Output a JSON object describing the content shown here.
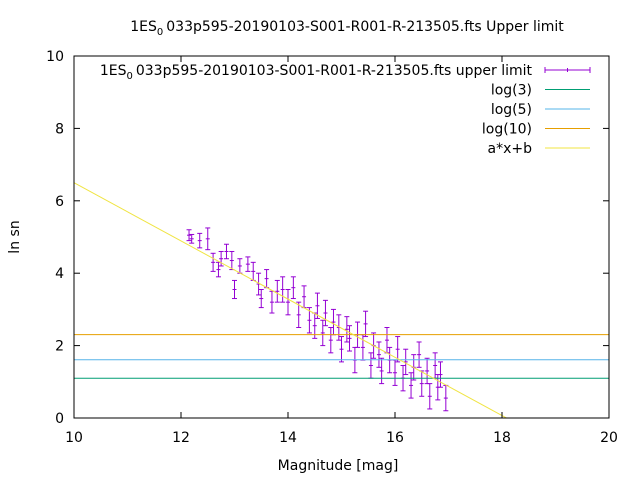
{
  "chart_data": {
    "type": "scatter",
    "title": {
      "prefix": "1ES",
      "subscript": "0",
      "suffix": "033p595-20190103-S001-R001-R-213505.fts Upper limit"
    },
    "xlabel": "Magnitude [mag]",
    "ylabel": "ln sn",
    "xlim": [
      10,
      20
    ],
    "ylim": [
      0,
      10
    ],
    "xticks": [
      {
        "value": 10,
        "label": "10"
      },
      {
        "value": 12,
        "label": "12"
      },
      {
        "value": 14,
        "label": "14"
      },
      {
        "value": 16,
        "label": "16"
      },
      {
        "value": 18,
        "label": "18"
      },
      {
        "value": 20,
        "label": "20"
      }
    ],
    "yticks": [
      {
        "value": 0,
        "label": "0"
      },
      {
        "value": 2,
        "label": "2"
      },
      {
        "value": 4,
        "label": "4"
      },
      {
        "value": 6,
        "label": "6"
      },
      {
        "value": 8,
        "label": "8"
      },
      {
        "value": 10,
        "label": "10"
      }
    ],
    "legend_position": "top-right",
    "series": [
      {
        "name": {
          "prefix": "1ES",
          "subscript": "0",
          "suffix": "033p595-20190103-S001-R001-R-213505.fts upper limit"
        },
        "kind": "errorbars",
        "color": "#9400d3",
        "points": [
          [
            12.15,
            5.05,
            0.15
          ],
          [
            12.2,
            4.95,
            0.12
          ],
          [
            12.35,
            4.9,
            0.2
          ],
          [
            12.5,
            4.95,
            0.3
          ],
          [
            12.6,
            4.3,
            0.25
          ],
          [
            12.7,
            4.1,
            0.2
          ],
          [
            12.75,
            4.4,
            0.2
          ],
          [
            12.85,
            4.6,
            0.2
          ],
          [
            12.95,
            4.35,
            0.25
          ],
          [
            13.0,
            3.55,
            0.25
          ],
          [
            13.1,
            4.2,
            0.2
          ],
          [
            13.25,
            4.25,
            0.2
          ],
          [
            13.35,
            4.05,
            0.25
          ],
          [
            13.45,
            3.7,
            0.3
          ],
          [
            13.5,
            3.3,
            0.25
          ],
          [
            13.6,
            3.85,
            0.25
          ],
          [
            13.7,
            3.2,
            0.3
          ],
          [
            13.8,
            3.5,
            0.3
          ],
          [
            13.9,
            3.55,
            0.35
          ],
          [
            14.0,
            3.2,
            0.35
          ],
          [
            14.1,
            3.6,
            0.3
          ],
          [
            14.2,
            2.85,
            0.35
          ],
          [
            14.3,
            3.35,
            0.3
          ],
          [
            14.4,
            2.7,
            0.35
          ],
          [
            14.5,
            2.55,
            0.35
          ],
          [
            14.55,
            3.1,
            0.35
          ],
          [
            14.65,
            2.35,
            0.35
          ],
          [
            14.7,
            2.9,
            0.35
          ],
          [
            14.8,
            2.15,
            0.35
          ],
          [
            14.85,
            2.65,
            0.35
          ],
          [
            14.95,
            2.5,
            0.35
          ],
          [
            15.0,
            1.9,
            0.35
          ],
          [
            15.1,
            2.45,
            0.35
          ],
          [
            15.15,
            2.2,
            0.35
          ],
          [
            15.25,
            1.6,
            0.35
          ],
          [
            15.3,
            2.3,
            0.35
          ],
          [
            15.4,
            1.95,
            0.35
          ],
          [
            15.45,
            2.6,
            0.35
          ],
          [
            15.55,
            1.45,
            0.35
          ],
          [
            15.6,
            2.0,
            0.35
          ],
          [
            15.7,
            1.75,
            0.35
          ],
          [
            15.75,
            1.3,
            0.35
          ],
          [
            15.85,
            2.15,
            0.35
          ],
          [
            15.9,
            1.6,
            0.35
          ],
          [
            16.0,
            1.25,
            0.35
          ],
          [
            16.05,
            1.9,
            0.35
          ],
          [
            16.15,
            1.1,
            0.35
          ],
          [
            16.2,
            1.55,
            0.35
          ],
          [
            16.3,
            0.9,
            0.35
          ],
          [
            16.35,
            1.4,
            0.35
          ],
          [
            16.45,
            1.75,
            0.35
          ],
          [
            16.5,
            0.95,
            0.35
          ],
          [
            16.6,
            1.3,
            0.35
          ],
          [
            16.65,
            0.6,
            0.35
          ],
          [
            16.75,
            1.45,
            0.35
          ],
          [
            16.8,
            0.85,
            0.35
          ],
          [
            16.85,
            1.2,
            0.35
          ],
          [
            16.95,
            0.55,
            0.35
          ]
        ]
      },
      {
        "name": "log(3)",
        "kind": "hline",
        "y": 1.0986,
        "color": "#009e73"
      },
      {
        "name": "log(5)",
        "kind": "hline",
        "y": 1.6094,
        "color": "#56b4e9"
      },
      {
        "name": "log(10)",
        "kind": "hline",
        "y": 2.3026,
        "color": "#e69f00"
      },
      {
        "name": "a*x+b",
        "kind": "fit",
        "a": -0.804,
        "b": 14.54,
        "color": "#f0e442"
      }
    ]
  }
}
